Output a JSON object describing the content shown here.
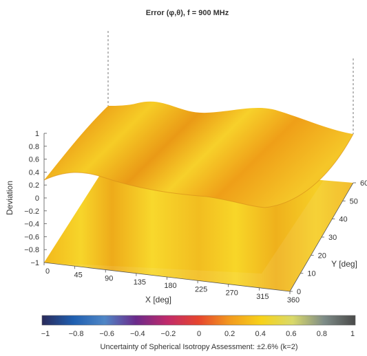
{
  "chart_data": {
    "type": "surface",
    "title": "Error (φ,θ), f = 900 MHz",
    "xlabel": "X [deg]",
    "ylabel": "Y [deg]",
    "zlabel": "Deviation",
    "x_ticks": [
      "0",
      "45",
      "90",
      "135",
      "180",
      "225",
      "270",
      "315",
      "360"
    ],
    "y_ticks": [
      "0",
      "10",
      "20",
      "30",
      "40",
      "50",
      "60"
    ],
    "z_ticks": [
      "−1",
      "−0.8",
      "−0.6",
      "−0.4",
      "−0.2",
      "0",
      "0.2",
      "0.4",
      "0.6",
      "0.8",
      "1"
    ],
    "xlim": [
      0,
      360
    ],
    "ylim": [
      0,
      60
    ],
    "zlim": [
      -1,
      1
    ],
    "colorbar": {
      "ticks": [
        "−1",
        "−0.8",
        "−0.6",
        "−0.4",
        "−0.2",
        "0",
        "0.2",
        "0.4",
        "0.6",
        "0.8",
        "1"
      ],
      "range": [
        -1,
        1
      ],
      "colors": [
        "#2a2a5a",
        "#1f5fb0",
        "#4f86c6",
        "#6b2a8a",
        "#c02a6a",
        "#e6452e",
        "#f29a1e",
        "#f7d21a",
        "#d9d96a",
        "#7e8c88",
        "#4a4a4a"
      ],
      "label": "Uncertainty of Spherical Isotropy Assessment: ±2.6% (k=2)"
    },
    "surfaces": [
      {
        "name": "",
        "approx_value_range": [
          -0.05,
          0.1
        ]
      },
      {
        "name": "",
        "approx_value_range": [
          0.12,
          0.25
        ]
      }
    ]
  }
}
